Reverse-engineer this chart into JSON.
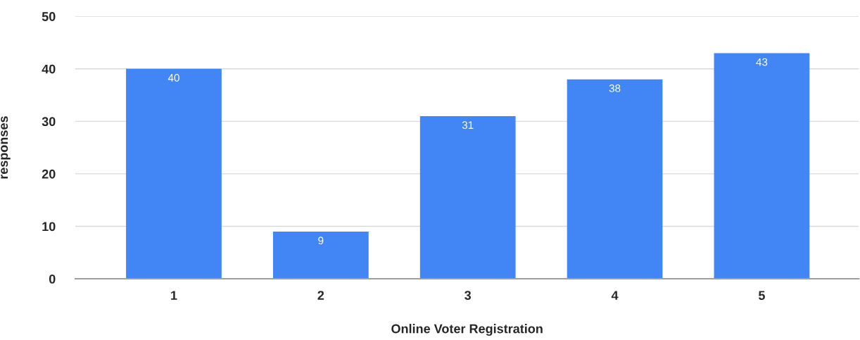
{
  "chart_data": {
    "type": "bar",
    "xlabel": "Online Voter Registration",
    "ylabel": "responses",
    "categories": [
      "1",
      "2",
      "3",
      "4",
      "5"
    ],
    "values": [
      40,
      9,
      31,
      38,
      43
    ],
    "color": "#4285f4",
    "ylim": [
      0,
      50
    ],
    "yticks": [
      0,
      10,
      20,
      30,
      40,
      50
    ],
    "grid": "y",
    "data_labels": true
  }
}
